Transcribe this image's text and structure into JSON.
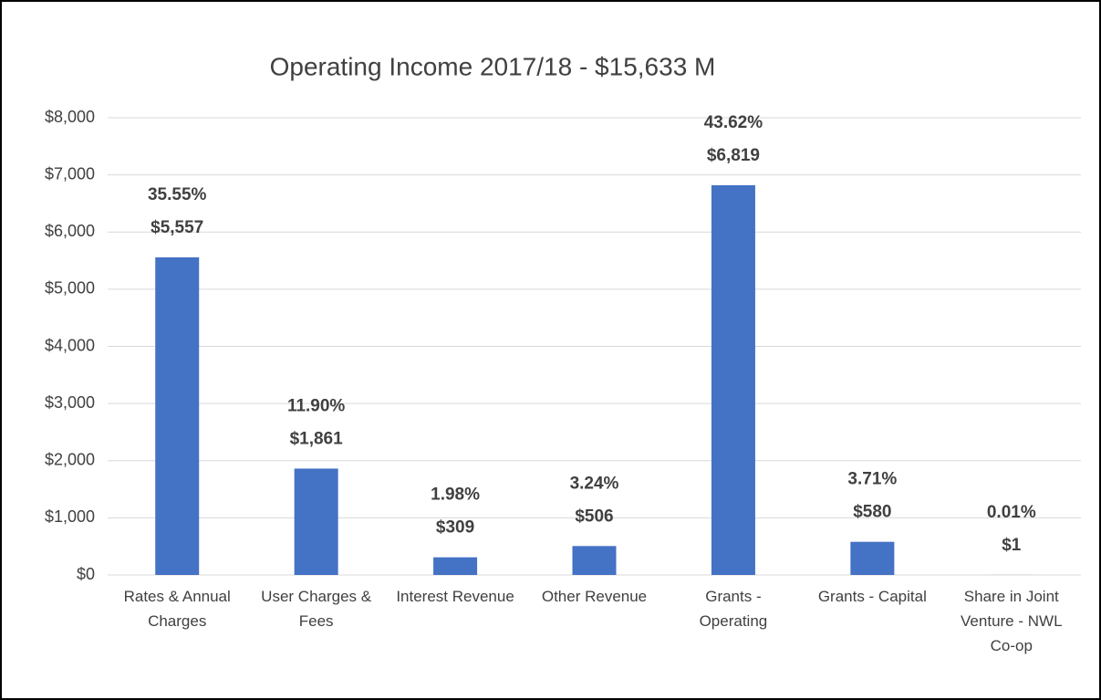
{
  "chart_data": {
    "type": "bar",
    "title": "Operating Income  2017/18 - $15,633 M",
    "categories": [
      "Rates & Annual Charges",
      "User Charges & Fees",
      "Interest Revenue",
      "Other Revenue",
      "Grants - Operating",
      "Grants - Capital",
      "Share in Joint Venture - NWL Co-op"
    ],
    "values": [
      5557,
      1861,
      309,
      506,
      6819,
      580,
      1
    ],
    "value_labels": [
      "$5,557",
      "$1,861",
      "$309",
      "$506",
      "$6,819",
      "$580",
      "$1"
    ],
    "percentage_labels": [
      "35.55%",
      "11.90%",
      "1.98%",
      "3.24%",
      "43.62%",
      "3.71%",
      "0.01%"
    ],
    "color": "#4472c4",
    "ylim": [
      0,
      8000
    ],
    "yticks": [
      {
        "value": 0,
        "label": "$0"
      },
      {
        "value": 1000,
        "label": "$1,000"
      },
      {
        "value": 2000,
        "label": "$2,000"
      },
      {
        "value": 3000,
        "label": "$3,000"
      },
      {
        "value": 4000,
        "label": "$4,000"
      },
      {
        "value": 5000,
        "label": "$5,000"
      },
      {
        "value": 6000,
        "label": "$6,000"
      },
      {
        "value": 7000,
        "label": "$7,000"
      },
      {
        "value": 8000,
        "label": "$8,000"
      }
    ],
    "grid": true
  }
}
